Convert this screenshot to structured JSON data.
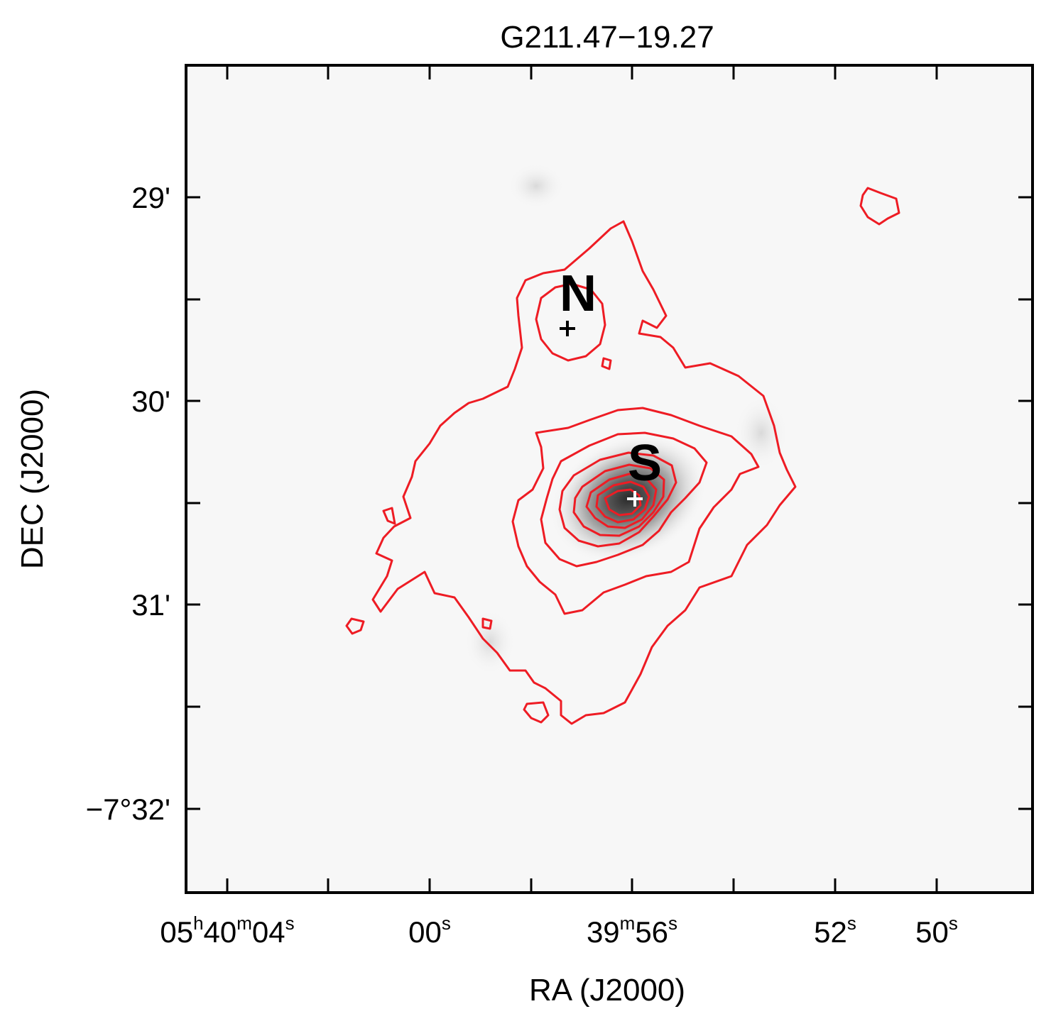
{
  "chart_data": {
    "type": "image-contour",
    "title": "G211.47−19.27",
    "xlabel": "RA (J2000)",
    "ylabel": "DEC (J2000)",
    "colors": {
      "contour": "#ee1c24",
      "frame": "#000000",
      "background": "#f7f7f7",
      "peak": "#2a2a2a"
    },
    "grid": false,
    "x_ticks": [
      {
        "value": "05h40m04s",
        "parts": [
          [
            "05",
            ""
          ],
          [
            "h",
            "sup"
          ],
          [
            "40",
            ""
          ],
          [
            "m",
            "sup"
          ],
          [
            "04",
            ""
          ],
          [
            "s",
            "sup"
          ]
        ]
      },
      {
        "value": "05h40m02s",
        "parts": []
      },
      {
        "value": "05h40m00s",
        "parts": [
          [
            "00",
            ""
          ],
          [
            "s",
            "sup"
          ]
        ]
      },
      {
        "value": "05h39m58s",
        "parts": []
      },
      {
        "value": "05h39m56s",
        "parts": [
          [
            "39",
            ""
          ],
          [
            "m",
            "sup"
          ],
          [
            "56",
            ""
          ],
          [
            "s",
            "sup"
          ]
        ]
      },
      {
        "value": "05h39m54s",
        "parts": []
      },
      {
        "value": "05h39m52s",
        "parts": [
          [
            "52",
            ""
          ],
          [
            "s",
            "sup"
          ]
        ]
      },
      {
        "value": "05h39m50s",
        "parts": [
          [
            "50",
            ""
          ],
          [
            "s",
            "sup"
          ]
        ]
      }
    ],
    "y_ticks": [
      {
        "value": "-7d29m00s",
        "label": "29'"
      },
      {
        "value": "-7d29m30s",
        "label": ""
      },
      {
        "value": "-7d30m00s",
        "label": "30'"
      },
      {
        "value": "-7d30m30s",
        "label": ""
      },
      {
        "value": "-7d31m00s",
        "label": "31'"
      },
      {
        "value": "-7d31m30s",
        "label": ""
      },
      {
        "value": "-7d32m00s",
        "label": "−7°32'"
      }
    ],
    "sources": [
      {
        "name": "N",
        "ra": "05h39m57.5s",
        "dec": "-7d29m37s",
        "marker_color": "#000000"
      },
      {
        "name": "S",
        "ra": "05h39m55.9s",
        "dec": "-7d30m28s",
        "marker_color": "#ffffff"
      }
    ],
    "contour_count": 8
  }
}
